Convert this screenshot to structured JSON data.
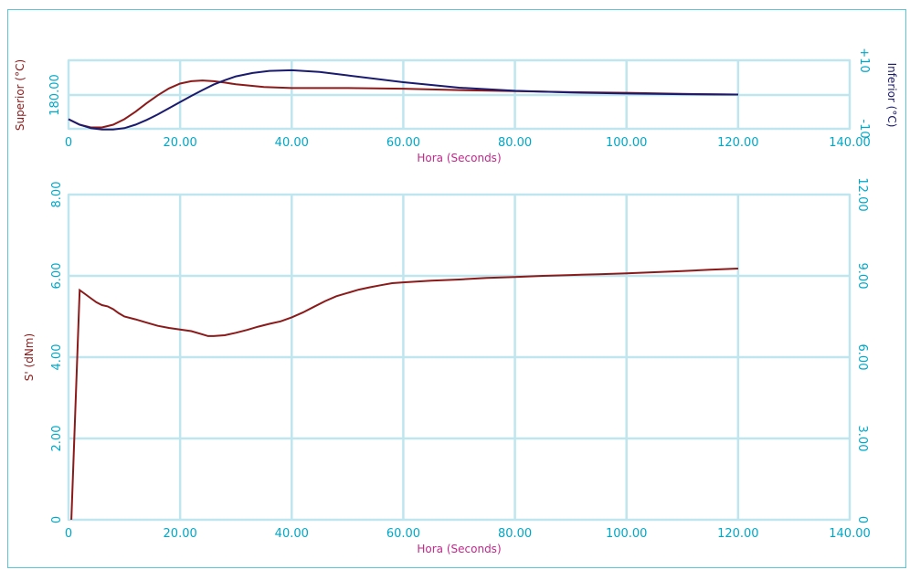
{
  "colors": {
    "axis": "#00a8c8",
    "grid": "#bfe6ee",
    "frame": "#5bc7d6",
    "superior": "#8b1a1a",
    "inferior": "#1a1a6e",
    "xlabel": "#c0288a",
    "left_label": "#8b1a1a",
    "right_label": "#1a1a6e"
  },
  "chart_data": [
    {
      "type": "line",
      "xlabel": "Hora (Seconds)",
      "ylabel_left": "Superior (°C)",
      "ylabel_right": "Inferior (°C)",
      "xlim": [
        0,
        140
      ],
      "x_ticks": [
        "0",
        "20.00",
        "40.00",
        "60.00",
        "80.00",
        "100.00",
        "120.00",
        "140.00"
      ],
      "y_left_tick_labels": [
        "180.00"
      ],
      "y_right_tick_labels": [
        "+10",
        "-10"
      ],
      "ylim_right": [
        -10,
        10
      ],
      "grid": true,
      "series": [
        {
          "name": "Superior (°C)",
          "axis": "left",
          "x": [
            0,
            2,
            4,
            6,
            8,
            10,
            12,
            14,
            16,
            18,
            20,
            22,
            24,
            26,
            28,
            30,
            35,
            40,
            50,
            60,
            70,
            80,
            90,
            100,
            110,
            120
          ],
          "y": [
            -7.2,
            -8.8,
            -9.6,
            -9.6,
            -8.8,
            -7.2,
            -5.0,
            -2.5,
            -0.2,
            1.8,
            3.2,
            3.9,
            4.1,
            3.9,
            3.5,
            3.0,
            2.2,
            1.9,
            1.9,
            1.7,
            1.3,
            1.0,
            0.7,
            0.5,
            0.2,
            0.0
          ]
        },
        {
          "name": "Inferior (°C)",
          "axis": "right",
          "x": [
            0,
            2,
            4,
            6,
            8,
            10,
            12,
            14,
            16,
            18,
            20,
            22,
            24,
            26,
            28,
            30,
            33,
            36,
            40,
            45,
            50,
            60,
            70,
            80,
            90,
            100,
            110,
            120
          ],
          "y": [
            -7.2,
            -8.8,
            -9.8,
            -10.2,
            -10.2,
            -9.8,
            -8.8,
            -7.4,
            -5.8,
            -4.0,
            -2.2,
            -0.4,
            1.3,
            2.9,
            4.2,
            5.3,
            6.3,
            6.9,
            7.1,
            6.6,
            5.6,
            3.6,
            2.0,
            1.1,
            0.6,
            0.3,
            0.1,
            0.0
          ]
        }
      ]
    },
    {
      "type": "line",
      "xlabel": "Hora (Seconds)",
      "ylabel_left": "S' (dNm)",
      "xlim": [
        0,
        140
      ],
      "ylim_left": [
        0,
        8
      ],
      "ylim_right": [
        0,
        12
      ],
      "x_ticks": [
        "0",
        "20.00",
        "40.00",
        "60.00",
        "80.00",
        "100.00",
        "120.00",
        "140.00"
      ],
      "y_left_ticks": [
        "0",
        "2.00",
        "4.00",
        "6.00",
        "8.00"
      ],
      "y_right_ticks": [
        "0",
        "3.00",
        "6.00",
        "9.00",
        "12.00"
      ],
      "grid": true,
      "series": [
        {
          "name": "S' (dNm)",
          "axis": "left",
          "x": [
            0.5,
            2,
            3,
            4,
            5,
            6,
            7,
            8,
            9,
            10,
            12,
            14,
            16,
            18,
            20,
            22,
            24,
            25,
            26,
            28,
            30,
            32,
            34,
            36,
            38,
            40,
            42,
            44,
            46,
            48,
            50,
            52,
            54,
            56,
            58,
            60,
            65,
            70,
            75,
            80,
            85,
            90,
            95,
            100,
            105,
            110,
            115,
            120
          ],
          "y": [
            0.0,
            5.65,
            5.55,
            5.45,
            5.35,
            5.28,
            5.25,
            5.18,
            5.08,
            5.0,
            4.93,
            4.85,
            4.77,
            4.72,
            4.68,
            4.64,
            4.56,
            4.52,
            4.52,
            4.54,
            4.6,
            4.67,
            4.75,
            4.82,
            4.88,
            4.98,
            5.1,
            5.24,
            5.38,
            5.5,
            5.58,
            5.66,
            5.72,
            5.77,
            5.82,
            5.84,
            5.88,
            5.91,
            5.95,
            5.97,
            6.0,
            6.02,
            6.04,
            6.06,
            6.09,
            6.12,
            6.15,
            6.18
          ]
        }
      ]
    }
  ]
}
